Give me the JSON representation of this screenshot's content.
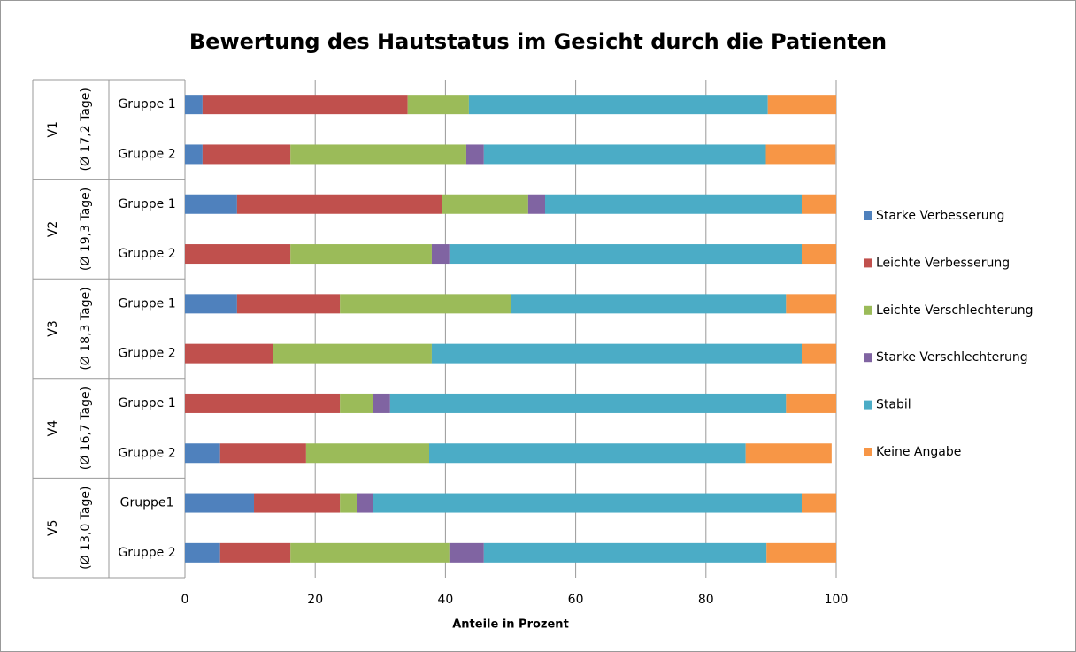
{
  "chart_data": {
    "type": "stacked-bar-horizontal",
    "title": "Bewertung des Hautstatus im Gesicht durch die Patienten",
    "x_label": "Anteile in Prozent",
    "groups": [
      {
        "name": "V1",
        "subtitle": "(Ø 17,2 Tage)"
      },
      {
        "name": "V2",
        "subtitle": "(Ø 19,3 Tage)"
      },
      {
        "name": "V3",
        "subtitle": "(Ø 18,3 Tage)"
      },
      {
        "name": "V4",
        "subtitle": "(Ø 16,7 Tage)"
      },
      {
        "name": "V5",
        "subtitle": "(Ø 13,0 Tage)"
      }
    ],
    "categories": [
      "Gruppe 1",
      "Gruppe 2",
      "Gruppe 1",
      "Gruppe 2",
      "Gruppe 1",
      "Gruppe 2",
      "Gruppe 1",
      "Gruppe 2",
      "Gruppe1",
      "Gruppe 2"
    ],
    "series": [
      {
        "name": "Starke Verbesserung",
        "color": "#4f81bd",
        "values": [
          2.7,
          2.7,
          8.0,
          0,
          8.0,
          0,
          0,
          5.4,
          10.6,
          5.4
        ]
      },
      {
        "name": "Leichte Verbesserung",
        "color": "#c0504d",
        "values": [
          31.5,
          13.5,
          31.5,
          16.2,
          15.8,
          13.5,
          23.8,
          13.2,
          13.2,
          10.8
        ]
      },
      {
        "name": "Leichte Verschlechterung",
        "color": "#9bbb59",
        "values": [
          9.4,
          27.0,
          13.2,
          21.7,
          26.2,
          24.4,
          5.1,
          18.9,
          2.6,
          24.4
        ]
      },
      {
        "name": "Starke Verschlechterung",
        "color": "#8064a2",
        "values": [
          0,
          2.7,
          2.6,
          2.7,
          0,
          0,
          2.6,
          0,
          2.5,
          5.3
        ]
      },
      {
        "name": "Stabil",
        "color": "#4bacc6",
        "values": [
          45.9,
          43.3,
          39.4,
          54.1,
          42.3,
          56.8,
          60.8,
          48.6,
          65.8,
          43.4
        ]
      },
      {
        "name": "Keine Angabe",
        "color": "#f79646",
        "values": [
          10.5,
          10.7,
          5.3,
          5.3,
          7.7,
          5.3,
          7.7,
          13.2,
          5.3,
          10.7
        ]
      }
    ],
    "xlim": [
      0,
      100
    ],
    "xticks": [
      0,
      20,
      40,
      60,
      80,
      100
    ],
    "grid": true,
    "legend": "right"
  }
}
